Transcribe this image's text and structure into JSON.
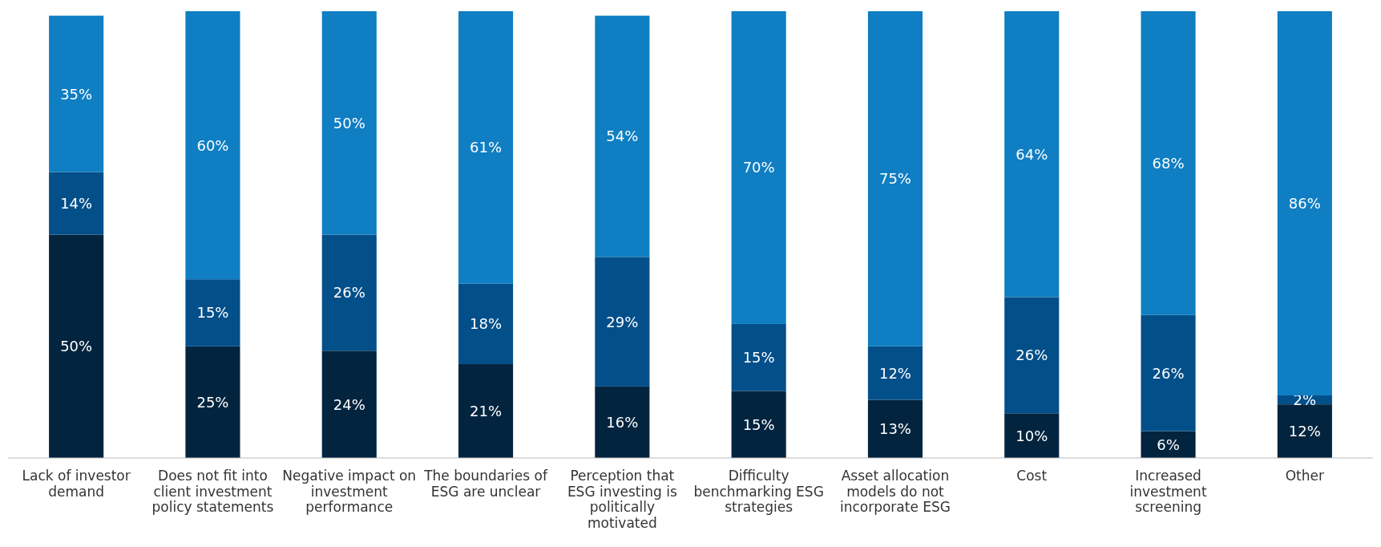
{
  "chart_data": {
    "type": "bar",
    "stacked": true,
    "categories": [
      "Lack of investor demand",
      "Does not fit into client investment policy statements",
      "Negative impact on investment performance",
      "The boundaries of ESG are unclear",
      "Perception that ESG investing is politically motivated",
      "Difficulty benchmarking ESG strategies",
      "Asset allocation models do not incorporate ESG",
      "Cost",
      "Increased investment screening",
      "Other"
    ],
    "ylim": [
      0,
      100
    ],
    "tick_labels": "x",
    "series": [
      {
        "color": "#03243f",
        "values": [
          50,
          25,
          24,
          21,
          16,
          15,
          13,
          10,
          6,
          12
        ],
        "value_labels": [
          "50%",
          "25%",
          "24%",
          "21%",
          "16%",
          "15%",
          "13%",
          "10%",
          "6%",
          "12%"
        ]
      },
      {
        "color": "#024f8a",
        "values": [
          14,
          15,
          26,
          18,
          29,
          15,
          12,
          26,
          26,
          2
        ],
        "value_labels": [
          "14%",
          "15%",
          "26%",
          "18%",
          "29%",
          "15%",
          "12%",
          "26%",
          "26%",
          "2%"
        ]
      },
      {
        "color": "#0f7ec2",
        "values": [
          35,
          60,
          50,
          61,
          54,
          70,
          75,
          64,
          68,
          86
        ],
        "value_labels": [
          "35%",
          "60%",
          "50%",
          "61%",
          "54%",
          "70%",
          "75%",
          "64%",
          "68%",
          "86%"
        ]
      }
    ]
  }
}
